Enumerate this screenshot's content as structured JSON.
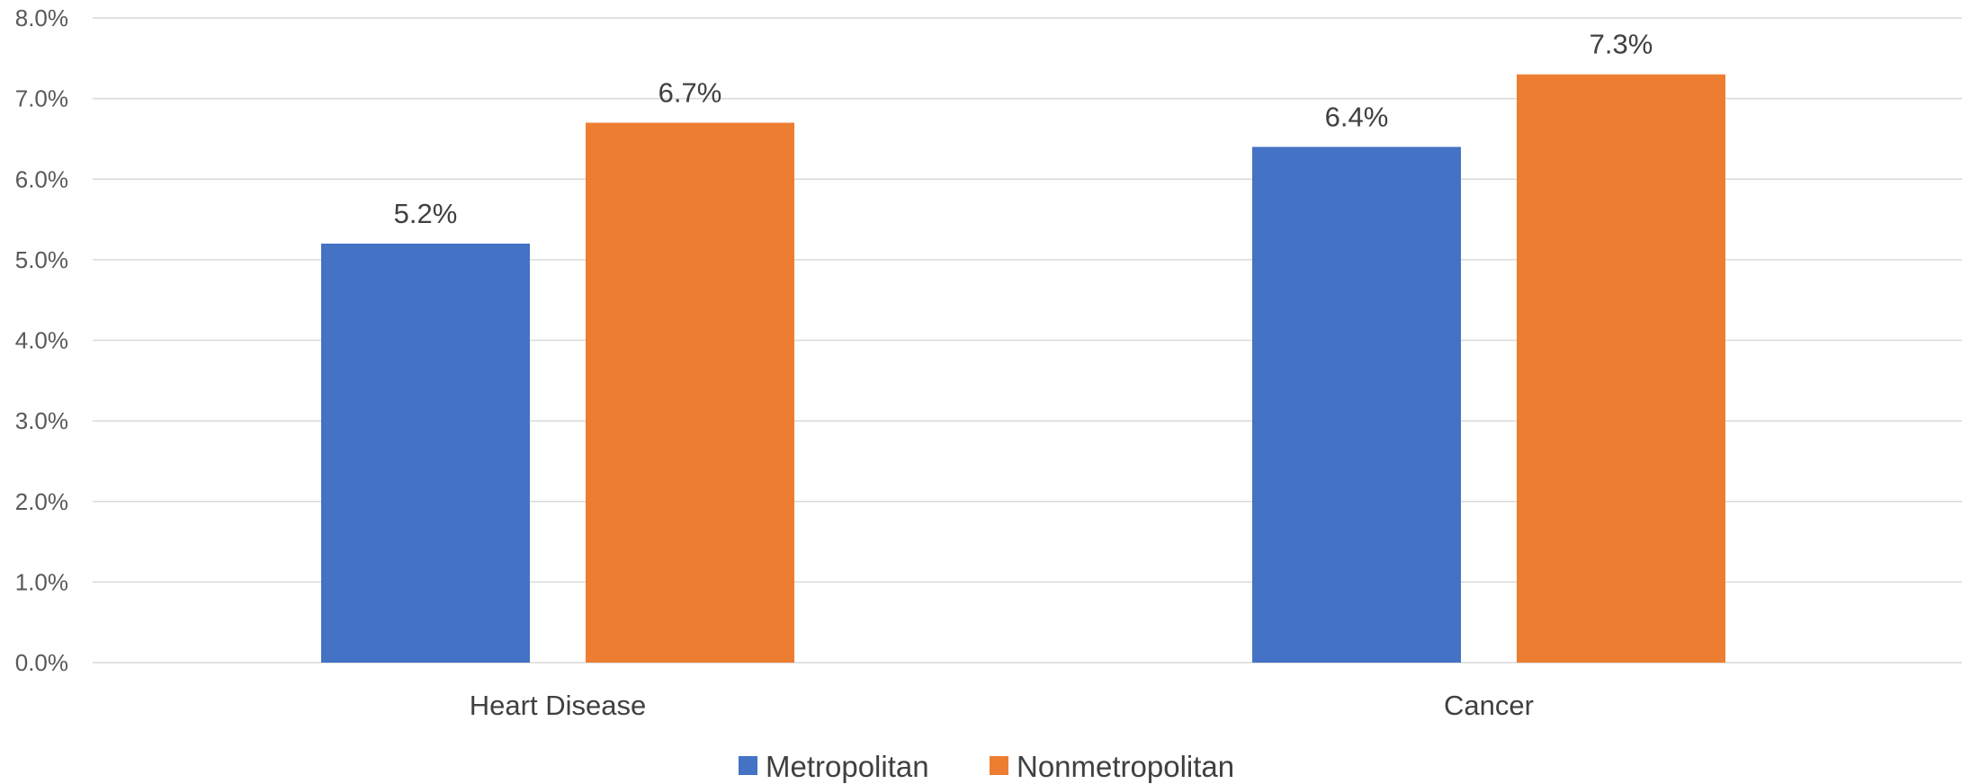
{
  "chart_data": {
    "type": "bar",
    "title": "",
    "xlabel": "",
    "ylabel": "",
    "categories": [
      "Heart Disease",
      "Cancer"
    ],
    "series": [
      {
        "name": "Metropolitan",
        "values": [
          5.2,
          6.4
        ],
        "labels": [
          "5.2%",
          "6.4%"
        ],
        "color": "#4472C4"
      },
      {
        "name": "Nonmetropolitan",
        "values": [
          6.7,
          7.3
        ],
        "labels": [
          "6.7%",
          "7.3%"
        ],
        "color": "#ED7D31"
      }
    ],
    "ylim": [
      0,
      8
    ],
    "yticks": [
      0,
      1,
      2,
      3,
      4,
      5,
      6,
      7,
      8
    ],
    "ytick_labels": [
      "0.0%",
      "1.0%",
      "2.0%",
      "3.0%",
      "4.0%",
      "5.0%",
      "6.0%",
      "7.0%",
      "8.0%"
    ],
    "grid": true,
    "legend_position": "bottom",
    "gridline_color": "#D9D9D9"
  }
}
